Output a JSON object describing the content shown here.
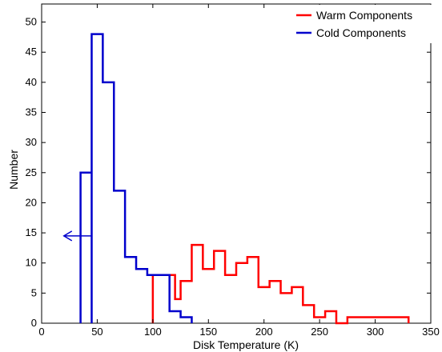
{
  "chart_data": {
    "type": "histogram",
    "xlabel": "Disk Temperature (K)",
    "ylabel": "Number",
    "xlim": [
      0,
      350
    ],
    "ylim": [
      0,
      53
    ],
    "x_ticks": [
      0,
      50,
      100,
      150,
      200,
      250,
      300,
      350
    ],
    "y_ticks": [
      0,
      5,
      10,
      15,
      20,
      25,
      30,
      35,
      40,
      45,
      50
    ],
    "grid": false,
    "legend_position": "top-right",
    "series": [
      {
        "name": "Warm Components",
        "color": "#ff0000",
        "style": "stairs",
        "points": [
          [
            100,
            0
          ],
          [
            100,
            8
          ],
          [
            120,
            8
          ],
          [
            120,
            4
          ],
          [
            125,
            4
          ],
          [
            125,
            7
          ],
          [
            135,
            7
          ],
          [
            135,
            13
          ],
          [
            145,
            13
          ],
          [
            145,
            9
          ],
          [
            155,
            9
          ],
          [
            155,
            12
          ],
          [
            165,
            12
          ],
          [
            165,
            8
          ],
          [
            175,
            8
          ],
          [
            175,
            10
          ],
          [
            185,
            10
          ],
          [
            185,
            11
          ],
          [
            195,
            11
          ],
          [
            195,
            6
          ],
          [
            205,
            6
          ],
          [
            205,
            7
          ],
          [
            215,
            7
          ],
          [
            215,
            5
          ],
          [
            225,
            5
          ],
          [
            225,
            6
          ],
          [
            235,
            6
          ],
          [
            235,
            3
          ],
          [
            245,
            3
          ],
          [
            245,
            1
          ],
          [
            255,
            1
          ],
          [
            255,
            2
          ],
          [
            265,
            2
          ],
          [
            265,
            0
          ],
          [
            275,
            0
          ],
          [
            275,
            1
          ],
          [
            330,
            1
          ],
          [
            330,
            0
          ]
        ]
      },
      {
        "name": "Cold Components",
        "color": "#0000cc",
        "style": "stairs",
        "points": [
          [
            35,
            0
          ],
          [
            35,
            25
          ],
          [
            45,
            25
          ],
          [
            45,
            0
          ],
          [
            45,
            48
          ],
          [
            55,
            48
          ],
          [
            55,
            40
          ],
          [
            65,
            40
          ],
          [
            65,
            22
          ],
          [
            75,
            22
          ],
          [
            75,
            11
          ],
          [
            85,
            11
          ],
          [
            85,
            9
          ],
          [
            95,
            9
          ],
          [
            95,
            8
          ],
          [
            115,
            8
          ],
          [
            115,
            2
          ],
          [
            125,
            2
          ],
          [
            125,
            1
          ],
          [
            135,
            1
          ],
          [
            135,
            0
          ]
        ]
      }
    ],
    "annotations": [
      {
        "type": "arrow",
        "direction": "left",
        "from": [
          45,
          14.5
        ],
        "to": [
          20,
          14.5
        ],
        "color": "#0000cc"
      }
    ]
  }
}
